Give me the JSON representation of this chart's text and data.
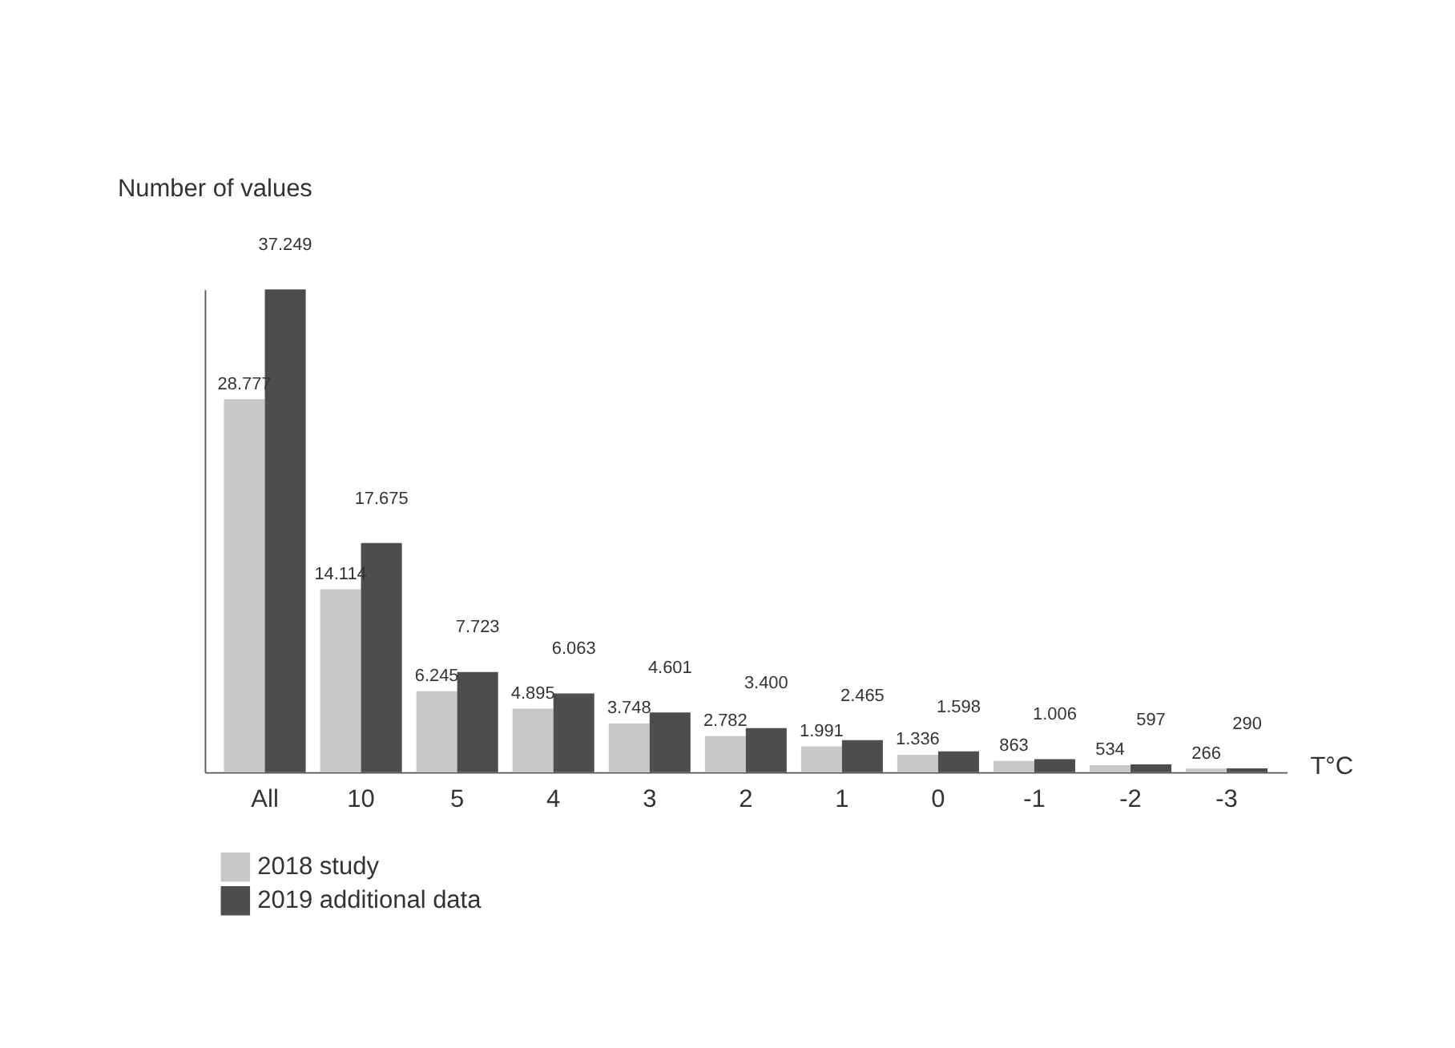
{
  "chart_data": {
    "type": "bar",
    "xlabel": "T°C",
    "ylabel": "Number of values",
    "categories": [
      "All",
      "10",
      "5",
      "4",
      "3",
      "2",
      "1",
      "0",
      "-1",
      "-2",
      "-3"
    ],
    "series": [
      {
        "name": "2018 study",
        "color": "#c8c8c8",
        "values": [
          28777,
          14114,
          6245,
          4895,
          3748,
          2782,
          1991,
          1336,
          863,
          534,
          266
        ],
        "value_labels": [
          "28.777",
          "14.114",
          "6.245",
          "4.895",
          "3.748",
          "2.782",
          "1.991",
          "1.336",
          "863",
          "534",
          "266"
        ]
      },
      {
        "name": "2019 additional data",
        "color": "#4d4d4d",
        "values": [
          37249,
          17675,
          7723,
          6063,
          4601,
          3400,
          2465,
          1598,
          1006,
          597,
          290
        ],
        "value_labels": [
          "37.249",
          "17.675",
          "7.723",
          "6.063",
          "4.601",
          "3.400",
          "2.465",
          "1.598",
          "1.006",
          "597",
          "290"
        ]
      }
    ],
    "grid": false,
    "legend": "bottom"
  }
}
